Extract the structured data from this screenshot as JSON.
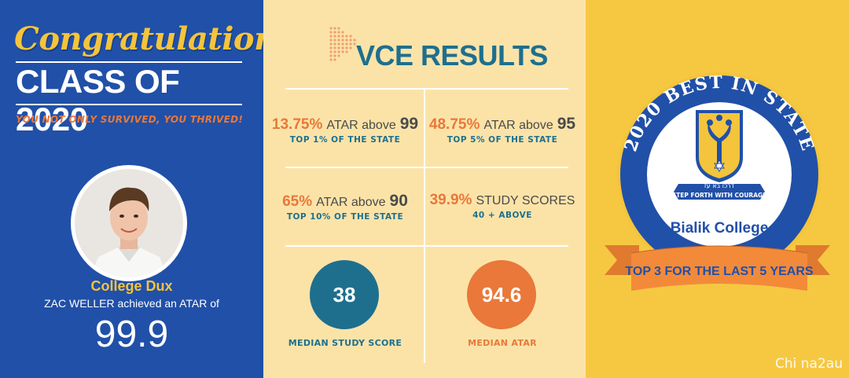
{
  "left": {
    "congrats": "Congratulations",
    "class_of": "CLASS OF 2020",
    "tagline": "YOU NOT ONLY SURVIVED, YOU THRIVED!",
    "dux_title": "College Dux",
    "dux_sub": "ZAC WELLER achieved an ATAR of",
    "dux_score": "99.9"
  },
  "mid": {
    "title": "VCE RESULTS",
    "stats": [
      {
        "pct": "13.75%",
        "text": "ATAR above",
        "num": "99",
        "sub": "TOP 1% OF THE STATE"
      },
      {
        "pct": "48.75%",
        "text": "ATAR above",
        "num": "95",
        "sub": "TOP 5% OF THE STATE"
      },
      {
        "pct": "65%",
        "text": "ATAR above",
        "num": "90",
        "sub": "TOP 10% OF THE STATE"
      },
      {
        "pct": "39.9%",
        "text": "STUDY SCORES",
        "num": "",
        "sub": "40 + ABOVE"
      }
    ],
    "median_study": {
      "value": "38",
      "label": "MEDIAN STUDY SCORE"
    },
    "median_atar": {
      "value": "94.6",
      "label": "MEDIAN ATAR"
    }
  },
  "right": {
    "arc_text": "2020 BEST IN STATE",
    "motto": "STEP FORTH WITH COURAGE",
    "hebrew": "דרכו בא עז",
    "school": "Bialik College",
    "ribbon": "TOP 3 FOR THE LAST 5 YEARS"
  },
  "watermark": "Chi na2au",
  "colors": {
    "blue": "#2150a8",
    "gold": "#f4c43c",
    "orange": "#e9783a",
    "teal": "#1e6f8e",
    "cream": "#fbe3a8"
  }
}
